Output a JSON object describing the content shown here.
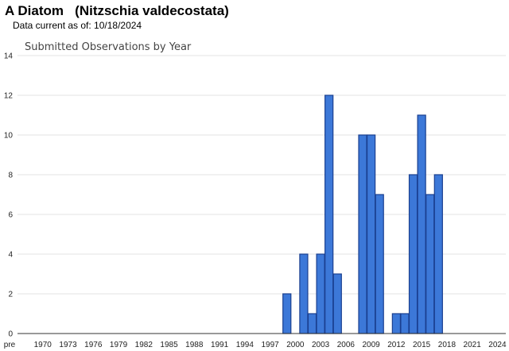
{
  "header": {
    "title": "A Diatom   (Nitzschia valdecostata)",
    "current_label": "Data current as of: 10/18/2024"
  },
  "chart_data": {
    "type": "bar",
    "title": "Submitted Observations by Year",
    "xlabel": "",
    "ylabel": "",
    "ylim": [
      0,
      14
    ],
    "yticks": [
      0,
      2,
      4,
      6,
      8,
      10,
      12,
      14
    ],
    "grid": true,
    "legend": "none",
    "bar_color": "#3c78d8",
    "bar_edge_color": "#1a3f8f",
    "x_range": [
      1967,
      2025
    ],
    "x_tick_labels": [
      "pre",
      "1970",
      "1973",
      "1976",
      "1979",
      "1982",
      "1985",
      "1988",
      "1991",
      "1994",
      "1997",
      "2000",
      "2003",
      "2006",
      "2009",
      "2012",
      "2015",
      "2018",
      "2021",
      "2024"
    ],
    "bars": [
      {
        "year": 1999,
        "value": 2
      },
      {
        "year": 2001,
        "value": 4
      },
      {
        "year": 2002,
        "value": 1
      },
      {
        "year": 2003,
        "value": 4
      },
      {
        "year": 2004,
        "value": 12
      },
      {
        "year": 2005,
        "value": 3
      },
      {
        "year": 2008,
        "value": 10
      },
      {
        "year": 2009,
        "value": 10
      },
      {
        "year": 2010,
        "value": 7
      },
      {
        "year": 2012,
        "value": 1
      },
      {
        "year": 2013,
        "value": 1
      },
      {
        "year": 2014,
        "value": 8
      },
      {
        "year": 2015,
        "value": 11
      },
      {
        "year": 2016,
        "value": 7
      },
      {
        "year": 2017,
        "value": 8
      }
    ]
  }
}
